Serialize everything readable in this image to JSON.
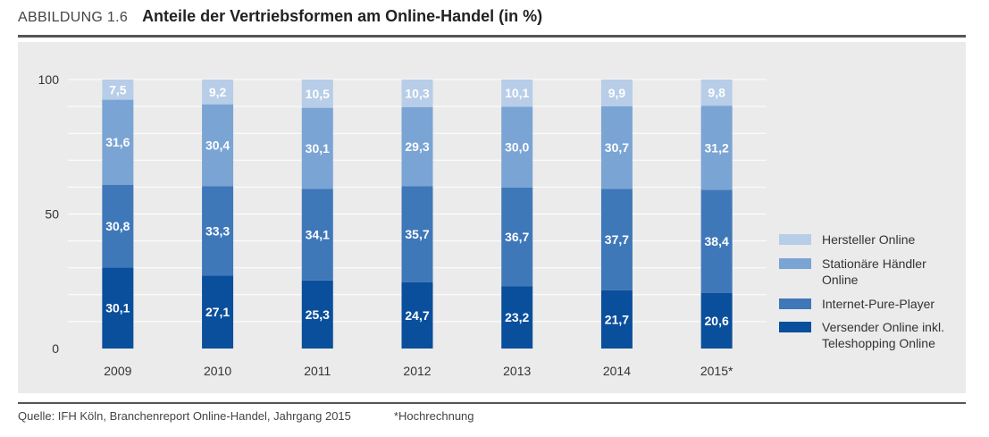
{
  "header": {
    "figure_label": "ABBILDUNG 1.6",
    "title": "Anteile der Vertriebsformen am Online-Handel (in %)"
  },
  "footer": {
    "source": "Quelle: IFH Köln, Branchenreport Online-Handel, Jahrgang 2015",
    "note": "*Hochrechnung"
  },
  "colors": {
    "panel_bg": "#ebebeb",
    "grid": "#ffffff"
  },
  "chart_data": {
    "type": "bar",
    "stacked": true,
    "categories": [
      "2009",
      "2010",
      "2011",
      "2012",
      "2013",
      "2014",
      "2015*"
    ],
    "ylim": [
      0,
      100
    ],
    "yticks": [
      0,
      50,
      100
    ],
    "grid": true,
    "legend_position": "right",
    "series": [
      {
        "name": "Versender Online inkl. Teleshopping Online",
        "color": "#0a4f9c",
        "label_color": "#ffffff",
        "values": [
          30.1,
          27.1,
          25.3,
          24.7,
          23.2,
          21.7,
          20.6
        ],
        "labels": [
          "30,1",
          "27,1",
          "25,3",
          "24,7",
          "23,2",
          "21,7",
          "20,6"
        ]
      },
      {
        "name": "Internet-Pure-Player",
        "color": "#3f78b9",
        "label_color": "#ffffff",
        "values": [
          30.8,
          33.3,
          34.1,
          35.7,
          36.7,
          37.7,
          38.4
        ],
        "labels": [
          "30,8",
          "33,3",
          "34,1",
          "35,7",
          "36,7",
          "37,7",
          "38,4"
        ]
      },
      {
        "name": "Stationäre Händler Online",
        "color": "#7aa4d4",
        "label_color": "#ffffff",
        "values": [
          31.6,
          30.4,
          30.1,
          29.3,
          30.0,
          30.7,
          31.2
        ],
        "labels": [
          "31,6",
          "30,4",
          "30,1",
          "29,3",
          "30,0",
          "30,7",
          "31,2"
        ]
      },
      {
        "name": "Hersteller Online",
        "color": "#b7cde8",
        "label_color": "#ffffff",
        "values": [
          7.5,
          9.2,
          10.5,
          10.3,
          10.1,
          9.9,
          9.8
        ],
        "labels": [
          "7,5",
          "9,2",
          "10,5",
          "10,3",
          "10,1",
          "9,9",
          "9,8"
        ]
      }
    ],
    "legend": [
      "Hersteller Online",
      "Stationäre Händler Online",
      "Internet-Pure-Player",
      "Versender Online inkl. Teleshopping Online"
    ]
  }
}
